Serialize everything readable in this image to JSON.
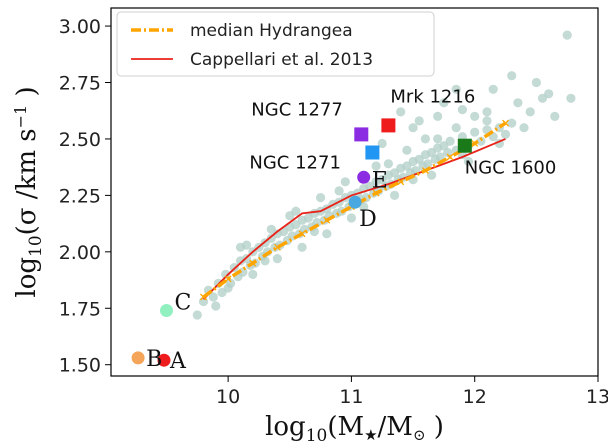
{
  "chart_data": {
    "type": "scatter",
    "xlabel": "log10(M★/M⊙)",
    "ylabel": "log10(σ /km s⁻¹)",
    "xlim": [
      9.05,
      13.0
    ],
    "ylim": [
      1.45,
      3.08
    ],
    "xticks": [
      10,
      11,
      12,
      13
    ],
    "yticks": [
      1.5,
      1.75,
      2.0,
      2.25,
      2.5,
      2.75,
      3.0
    ],
    "grid": false,
    "legend_position": "top-left",
    "legend": [
      {
        "label": "median Hydrangea",
        "color": "#ffa500",
        "style": "dashdot"
      },
      {
        "label": "Cappellari et al. 2013",
        "color": "#e8231a",
        "style": "solid"
      }
    ],
    "hydrangea_scatter_color": "#b4cfc9",
    "median_hydrangea": {
      "x": [
        9.8,
        10.0,
        10.2,
        10.4,
        10.6,
        10.8,
        11.0,
        11.2,
        11.4,
        11.6,
        11.8,
        12.0,
        12.25
      ],
      "y": [
        1.8,
        1.88,
        1.95,
        2.02,
        2.08,
        2.14,
        2.2,
        2.26,
        2.31,
        2.36,
        2.42,
        2.48,
        2.57
      ]
    },
    "cappellari_2013": {
      "x": [
        9.8,
        10.0,
        10.2,
        10.4,
        10.6,
        10.75,
        11.0,
        11.3,
        11.6,
        11.9,
        12.25
      ],
      "y": [
        1.79,
        1.9,
        2.0,
        2.09,
        2.17,
        2.18,
        2.25,
        2.3,
        2.36,
        2.42,
        2.5
      ]
    },
    "named_galaxies": [
      {
        "name": "NGC 1277",
        "x": 11.08,
        "y": 2.52,
        "color": "#8b2be2",
        "marker": "square",
        "label_side": "left-above"
      },
      {
        "name": "Mrk 1216",
        "x": 11.3,
        "y": 2.56,
        "color": "#ee1c1c",
        "marker": "square",
        "label_side": "above"
      },
      {
        "name": "NGC 1271",
        "x": 11.17,
        "y": 2.44,
        "color": "#2196f3",
        "marker": "square",
        "label_side": "left-below"
      },
      {
        "name": "NGC 1600",
        "x": 11.92,
        "y": 2.47,
        "color": "#1a7a1a",
        "marker": "square",
        "label_side": "below"
      }
    ],
    "letter_points": [
      {
        "name": "A",
        "x": 9.48,
        "y": 1.52,
        "color": "#ee1c1c"
      },
      {
        "name": "B",
        "x": 9.27,
        "y": 1.53,
        "color": "#f5a55a"
      },
      {
        "name": "C",
        "x": 9.5,
        "y": 1.74,
        "color": "#90f0c0"
      },
      {
        "name": "D",
        "x": 11.03,
        "y": 2.22,
        "color": "#4aa8e0"
      },
      {
        "name": "E",
        "x": 11.1,
        "y": 2.33,
        "color": "#8b2be2"
      }
    ],
    "scatter_points": [
      [
        9.75,
        1.72
      ],
      [
        9.8,
        1.78
      ],
      [
        9.84,
        1.83
      ],
      [
        9.88,
        1.8
      ],
      [
        9.92,
        1.86
      ],
      [
        9.95,
        1.82
      ],
      [
        9.98,
        1.9
      ],
      [
        10.02,
        1.86
      ],
      [
        10.05,
        1.93
      ],
      [
        10.08,
        1.89
      ],
      [
        10.1,
        1.96
      ],
      [
        10.12,
        1.91
      ],
      [
        10.15,
        1.97
      ],
      [
        10.18,
        1.94
      ],
      [
        10.2,
        2.0
      ],
      [
        10.22,
        1.95
      ],
      [
        10.25,
        2.02
      ],
      [
        10.28,
        1.98
      ],
      [
        10.3,
        2.04
      ],
      [
        10.32,
        2.0
      ],
      [
        10.35,
        2.06
      ],
      [
        10.38,
        2.02
      ],
      [
        10.4,
        2.08
      ],
      [
        10.42,
        2.03
      ],
      [
        10.45,
        2.09
      ],
      [
        10.48,
        2.05
      ],
      [
        10.5,
        2.11
      ],
      [
        10.52,
        2.07
      ],
      [
        10.55,
        2.12
      ],
      [
        10.58,
        2.08
      ],
      [
        10.6,
        2.14
      ],
      [
        10.62,
        2.1
      ],
      [
        10.65,
        2.15
      ],
      [
        10.68,
        2.11
      ],
      [
        10.7,
        2.17
      ],
      [
        10.72,
        2.13
      ],
      [
        10.75,
        2.18
      ],
      [
        10.78,
        2.14
      ],
      [
        10.8,
        2.19
      ],
      [
        10.82,
        2.16
      ],
      [
        10.85,
        2.21
      ],
      [
        10.88,
        2.17
      ],
      [
        10.9,
        2.22
      ],
      [
        10.92,
        2.18
      ],
      [
        10.95,
        2.24
      ],
      [
        10.98,
        2.2
      ],
      [
        11.0,
        2.25
      ],
      [
        11.02,
        2.21
      ],
      [
        11.05,
        2.26
      ],
      [
        11.08,
        2.23
      ],
      [
        11.1,
        2.28
      ],
      [
        11.12,
        2.24
      ],
      [
        11.15,
        2.29
      ],
      [
        11.18,
        2.26
      ],
      [
        11.2,
        2.31
      ],
      [
        11.22,
        2.27
      ],
      [
        11.25,
        2.32
      ],
      [
        11.28,
        2.29
      ],
      [
        11.3,
        2.34
      ],
      [
        11.32,
        2.3
      ],
      [
        11.35,
        2.35
      ],
      [
        11.38,
        2.32
      ],
      [
        11.4,
        2.37
      ],
      [
        11.42,
        2.33
      ],
      [
        11.45,
        2.38
      ],
      [
        11.48,
        2.35
      ],
      [
        11.5,
        2.4
      ],
      [
        11.52,
        2.36
      ],
      [
        11.55,
        2.41
      ],
      [
        11.58,
        2.38
      ],
      [
        11.6,
        2.43
      ],
      [
        11.62,
        2.39
      ],
      [
        11.65,
        2.44
      ],
      [
        11.68,
        2.41
      ],
      [
        11.7,
        2.46
      ],
      [
        11.72,
        2.42
      ],
      [
        11.75,
        2.47
      ],
      [
        11.78,
        2.44
      ],
      [
        11.8,
        2.49
      ],
      [
        11.85,
        2.45
      ],
      [
        11.9,
        2.51
      ],
      [
        11.95,
        2.47
      ],
      [
        12.0,
        2.53
      ],
      [
        12.05,
        2.49
      ],
      [
        12.1,
        2.54
      ],
      [
        12.15,
        2.51
      ],
      [
        12.2,
        2.55
      ],
      [
        12.25,
        2.52
      ],
      [
        12.3,
        2.57
      ],
      [
        12.45,
        2.62
      ],
      [
        12.6,
        2.7
      ],
      [
        12.75,
        2.96
      ],
      [
        12.78,
        2.68
      ],
      [
        10.1,
        2.02
      ],
      [
        10.3,
        1.96
      ],
      [
        10.5,
        2.16
      ],
      [
        10.7,
        2.09
      ],
      [
        10.9,
        2.27
      ],
      [
        11.1,
        2.2
      ],
      [
        11.3,
        2.39
      ],
      [
        11.5,
        2.32
      ],
      [
        11.7,
        2.5
      ],
      [
        11.9,
        2.43
      ],
      [
        12.1,
        2.58
      ],
      [
        12.2,
        2.48
      ],
      [
        11.4,
        2.62
      ],
      [
        11.55,
        2.58
      ],
      [
        11.75,
        2.66
      ],
      [
        11.9,
        2.63
      ],
      [
        12.15,
        2.72
      ],
      [
        12.35,
        2.66
      ],
      [
        12.5,
        2.75
      ],
      [
        11.6,
        2.5
      ],
      [
        11.85,
        2.55
      ],
      [
        12.0,
        2.6
      ],
      [
        11.2,
        2.38
      ],
      [
        11.45,
        2.45
      ],
      [
        10.95,
        2.31
      ],
      [
        10.75,
        2.24
      ],
      [
        10.55,
        2.18
      ],
      [
        10.35,
        2.1
      ],
      [
        10.15,
        2.03
      ],
      [
        11.65,
        2.34
      ],
      [
        11.95,
        2.4
      ],
      [
        12.4,
        2.55
      ],
      [
        12.1,
        2.62
      ],
      [
        11.35,
        2.25
      ],
      [
        11.0,
        2.15
      ],
      [
        10.8,
        2.08
      ],
      [
        10.6,
        2.02
      ],
      [
        10.4,
        1.97
      ],
      [
        10.2,
        1.9
      ],
      [
        10.0,
        1.84
      ],
      [
        9.9,
        1.76
      ],
      [
        11.7,
        2.6
      ],
      [
        11.85,
        2.72
      ],
      [
        12.3,
        2.78
      ],
      [
        12.55,
        2.68
      ],
      [
        11.5,
        2.55
      ],
      [
        11.25,
        2.48
      ],
      [
        12.65,
        2.6
      ]
    ]
  }
}
